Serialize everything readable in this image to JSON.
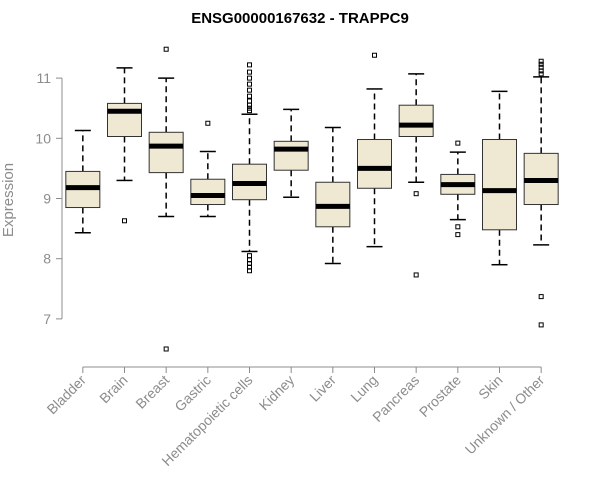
{
  "chart_data": {
    "type": "boxplot",
    "title": "ENSG00000167632 - TRAPPC9",
    "xlabel": "",
    "ylabel": "Expression",
    "ylim": [
      6.4,
      11.6
    ],
    "yticks": [
      7,
      8,
      9,
      10,
      11
    ],
    "colors": {
      "box_fill": "#efe8d2",
      "box_stroke": "#333333",
      "median": "#000000",
      "axis": "#8c8c8c",
      "text": "#8c8c8c"
    },
    "categories": [
      "Bladder",
      "Brain",
      "Breast",
      "Gastric",
      "Hematopoietic cells",
      "Kidney",
      "Liver",
      "Lung",
      "Pancreas",
      "Prostate",
      "Skin",
      "Unknown / Other"
    ],
    "boxes": [
      {
        "name": "Bladder",
        "whisker_low": 8.43,
        "q1": 8.85,
        "median": 9.18,
        "q3": 9.45,
        "whisker_high": 10.13,
        "outliers": []
      },
      {
        "name": "Brain",
        "whisker_low": 9.3,
        "q1": 10.03,
        "median": 10.45,
        "q3": 10.58,
        "whisker_high": 11.17,
        "outliers": [
          8.63
        ]
      },
      {
        "name": "Breast",
        "whisker_low": 8.7,
        "q1": 9.43,
        "median": 9.87,
        "q3": 10.1,
        "whisker_high": 11.0,
        "outliers": [
          11.48,
          6.5
        ]
      },
      {
        "name": "Gastric",
        "whisker_low": 8.7,
        "q1": 8.9,
        "median": 9.05,
        "q3": 9.32,
        "whisker_high": 9.78,
        "outliers": [
          10.25
        ]
      },
      {
        "name": "Hematopoietic cells",
        "whisker_low": 8.12,
        "q1": 8.98,
        "median": 9.25,
        "q3": 9.57,
        "whisker_high": 10.4,
        "outliers": [
          11.22,
          11.1,
          11.0,
          10.9,
          10.8,
          10.7,
          10.62,
          10.55,
          10.5,
          10.46,
          8.05,
          7.98,
          7.92,
          7.86,
          7.8
        ]
      },
      {
        "name": "Kidney",
        "whisker_low": 9.02,
        "q1": 9.47,
        "median": 9.82,
        "q3": 9.95,
        "whisker_high": 10.48,
        "outliers": []
      },
      {
        "name": "Liver",
        "whisker_low": 7.92,
        "q1": 8.53,
        "median": 8.87,
        "q3": 9.27,
        "whisker_high": 10.18,
        "outliers": []
      },
      {
        "name": "Lung",
        "whisker_low": 8.2,
        "q1": 9.17,
        "median": 9.5,
        "q3": 9.98,
        "whisker_high": 10.82,
        "outliers": [
          11.38
        ]
      },
      {
        "name": "Pancreas",
        "whisker_low": 9.27,
        "q1": 10.03,
        "median": 10.22,
        "q3": 10.55,
        "whisker_high": 11.07,
        "outliers": [
          9.08,
          7.73
        ]
      },
      {
        "name": "Prostate",
        "whisker_low": 8.65,
        "q1": 9.07,
        "median": 9.23,
        "q3": 9.4,
        "whisker_high": 9.77,
        "outliers": [
          9.92,
          8.53,
          8.4
        ]
      },
      {
        "name": "Skin",
        "whisker_low": 7.9,
        "q1": 8.48,
        "median": 9.13,
        "q3": 9.98,
        "whisker_high": 10.78,
        "outliers": []
      },
      {
        "name": "Unknown / Other",
        "whisker_low": 8.23,
        "q1": 8.9,
        "median": 9.3,
        "q3": 9.75,
        "whisker_high": 11.02,
        "outliers": [
          11.28,
          11.23,
          11.18,
          11.12,
          11.07,
          7.37,
          6.9
        ]
      }
    ]
  }
}
